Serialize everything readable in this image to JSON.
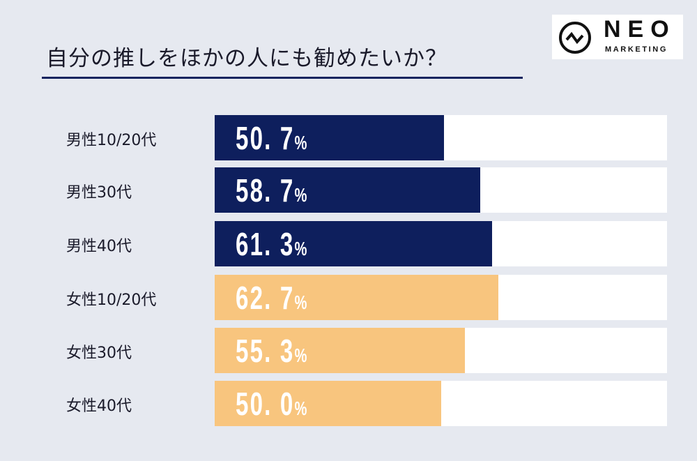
{
  "title": "自分の推しをほかの人にも勧めたいか？",
  "logo": {
    "name": "NEO",
    "sub": "MARKETING"
  },
  "colors": {
    "male": "#0e1f5d",
    "female": "#f8c57e",
    "track": "#ffffff"
  },
  "chart_data": {
    "type": "bar",
    "orientation": "horizontal",
    "title": "自分の推しをほかの人にも勧めたいか？",
    "categories": [
      "男性10/20代",
      "男性30代",
      "男性40代",
      "女性10/20代",
      "女性30代",
      "女性40代"
    ],
    "values": [
      50.7,
      58.7,
      61.3,
      62.7,
      55.3,
      50.0
    ],
    "value_labels": [
      "50. 7",
      "58. 7",
      "61. 3",
      "62. 7",
      "55. 3",
      "50. 0"
    ],
    "unit": "%",
    "groups": [
      "male",
      "male",
      "male",
      "female",
      "female",
      "female"
    ],
    "xlim": [
      0,
      100
    ]
  }
}
